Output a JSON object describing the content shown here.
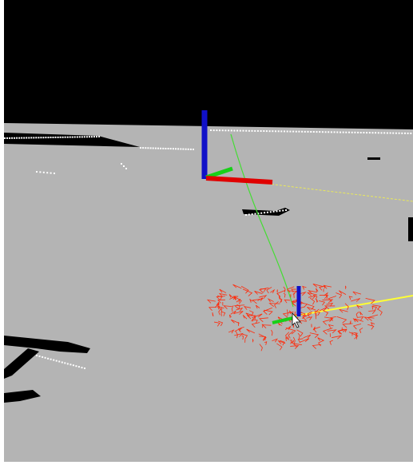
{
  "scene": {
    "background_color": "#000000",
    "ground_color": "#b4b4b4",
    "occupied_cell_color": "#000000",
    "laser_point_color": "#ffffff",
    "odom_path_color": "#44dd33",
    "plan_line_color": "#ffff33",
    "particle_cloud_color": "#ff2a0a",
    "axis_colors": {
      "x": "#e00000",
      "y": "#18d018",
      "z": "#1010c8"
    }
  },
  "cursor": {
    "icon": "mouse-pointer-icon"
  }
}
